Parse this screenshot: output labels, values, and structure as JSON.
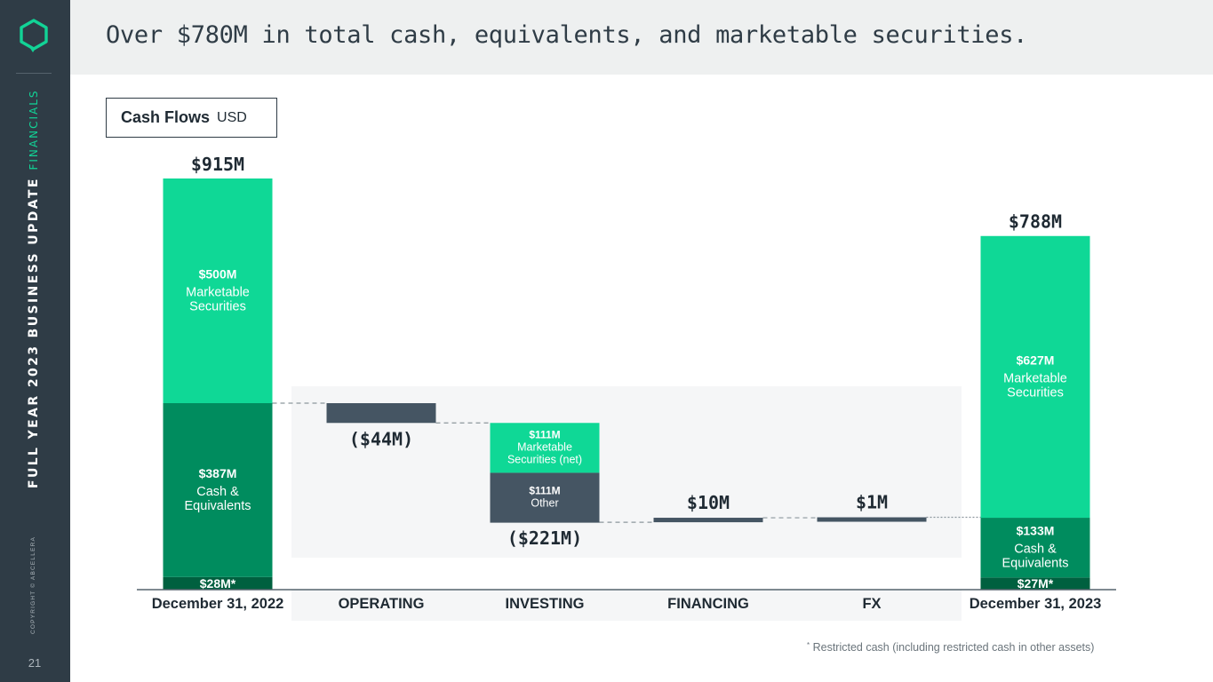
{
  "deck": {
    "section": "FINANCIALS",
    "title": "FULL YEAR 2023 BUSINESS UPDATE",
    "copyright": "COPYRIGHT © ABCELLERA",
    "page": "21"
  },
  "slide": {
    "title": "Over $780M in total cash, equivalents, and marketable securities.",
    "box_title": "Cash Flows",
    "box_unit": "USD"
  },
  "footnote": {
    "marker": "*",
    "text": "Restricted cash (including restricted cash in other assets)"
  },
  "colors": {
    "securities": "#0fd896",
    "cash": "#008c5e",
    "restricted": "#00603f",
    "slate": "#455563",
    "panel": "#f5f6f7",
    "text": "#1f2a33"
  },
  "chart_data": {
    "type": "waterfall",
    "unit": "USD millions",
    "categories": [
      "December 31, 2022",
      "OPERATING",
      "INVESTING",
      "FINANCING",
      "FX",
      "December 31, 2023"
    ],
    "ylim": [
      0,
      915
    ],
    "start": {
      "category": "December 31, 2022",
      "total": 915,
      "total_label": "$915M",
      "segments": [
        {
          "name": "Restricted cash",
          "value": 28,
          "value_label": "$28M*",
          "desc": "",
          "color": "restricted"
        },
        {
          "name": "Cash & Equivalents",
          "value": 387,
          "value_label": "$387M",
          "desc": "Cash & Equivalents",
          "color": "cash"
        },
        {
          "name": "Marketable Securities",
          "value": 500,
          "value_label": "$500M",
          "desc": "Marketable Securities",
          "color": "securities"
        }
      ]
    },
    "flows": [
      {
        "category": "OPERATING",
        "value": -44,
        "label": "($44M)",
        "segments": []
      },
      {
        "category": "INVESTING",
        "value": -221,
        "label": "($221M)",
        "segments": [
          {
            "name": "Marketable Securities (net)",
            "value": 111,
            "value_label": "$111M",
            "desc": "Marketable Securities (net)",
            "color": "securities"
          },
          {
            "name": "Other",
            "value": 111,
            "value_label": "$111M",
            "desc": "Other",
            "color": "slate"
          }
        ]
      },
      {
        "category": "FINANCING",
        "value": 10,
        "label": "$10M",
        "segments": []
      },
      {
        "category": "FX",
        "value": 1,
        "label": "$1M",
        "segments": []
      }
    ],
    "end": {
      "category": "December 31, 2023",
      "total": 788,
      "total_label": "$788M",
      "segments": [
        {
          "name": "Restricted cash",
          "value": 27,
          "value_label": "$27M*",
          "desc": "",
          "color": "restricted"
        },
        {
          "name": "Cash & Equivalents",
          "value": 133,
          "value_label": "$133M",
          "desc": "Cash & Equivalents",
          "color": "cash"
        },
        {
          "name": "Marketable Securities",
          "value": 627,
          "value_label": "$627M",
          "desc": "Marketable Securities",
          "color": "securities"
        }
      ]
    }
  }
}
